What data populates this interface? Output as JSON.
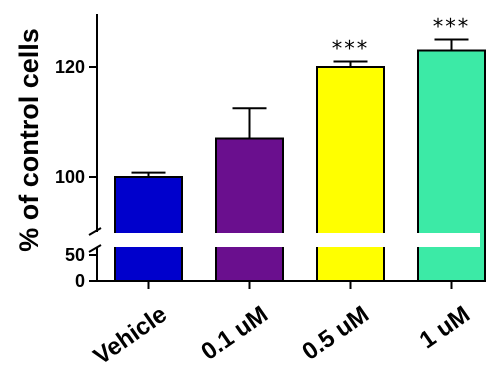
{
  "chart_data": {
    "type": "bar",
    "title": "",
    "xlabel": "",
    "ylabel": "% of control cells",
    "categories": [
      "Vehicle",
      "0.1 uM",
      "0.5 uM",
      "1 uM"
    ],
    "values": [
      100,
      107,
      120,
      123
    ],
    "errors": [
      0.8,
      5.5,
      1.0,
      2.0
    ],
    "annotations": [
      "",
      "",
      "***",
      "***"
    ],
    "colors": [
      "#0000cc",
      "#6a0f8e",
      "#ffff00",
      "#3ceaa6"
    ],
    "y_axis": {
      "broken": true,
      "segments": [
        {
          "range": [
            0,
            50
          ],
          "ticks": [
            {
              "value": 0,
              "label": "0"
            },
            {
              "value": 50,
              "label": "50"
            }
          ]
        },
        {
          "range": [
            92,
            130
          ],
          "ticks": [
            {
              "value": 100,
              "label": "100"
            },
            {
              "value": 120,
              "label": "120"
            }
          ]
        }
      ]
    },
    "grid": false,
    "legend": "none"
  }
}
